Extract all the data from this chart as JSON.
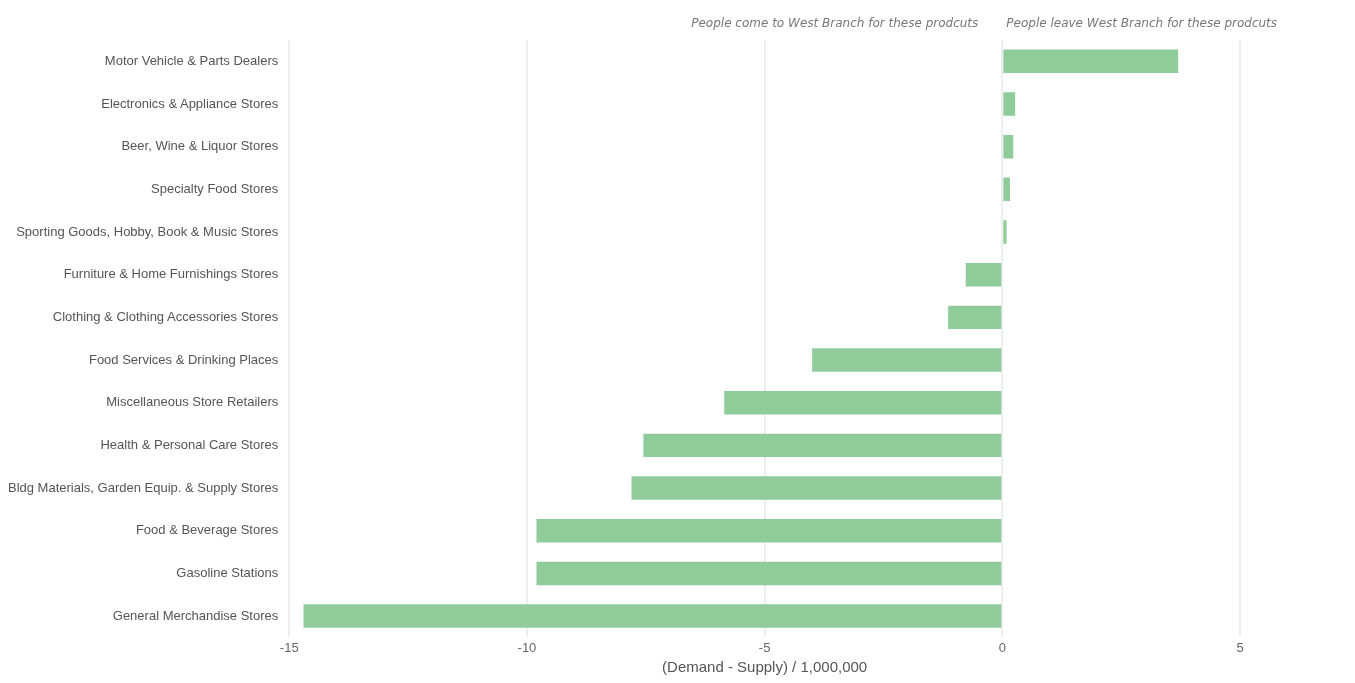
{
  "chart_data": {
    "type": "bar",
    "orientation": "horizontal",
    "xlabel": "(Demand - Supply) / 1,000,000",
    "annotations": [
      "People come to West Branch for these prodcuts",
      "People leave West Branch for these prodcuts"
    ],
    "categories": [
      "Motor Vehicle & Parts Dealers",
      "Electronics & Appliance Stores",
      "Beer, Wine & Liquor Stores",
      "Specialty Food Stores",
      "Sporting Goods, Hobby, Book & Music Stores",
      "Furniture & Home Furnishings Stores",
      "Clothing & Clothing Accessories Stores",
      "Food Services & Drinking Places",
      "Miscellaneous Store Retailers",
      "Health & Personal Care Stores",
      "Bldg Materials, Garden Equip. & Supply Stores",
      "Food & Beverage Stores",
      "Gasoline Stations",
      "General Merchandise Stores"
    ],
    "values": [
      3.7,
      0.27,
      0.23,
      0.16,
      0.09,
      -0.77,
      -1.14,
      -4.0,
      -5.85,
      -7.55,
      -7.8,
      -9.8,
      -9.8,
      -14.7
    ],
    "color": "#8fcc9a",
    "xlim": [
      -15,
      5
    ],
    "xticks": [
      -15,
      -10,
      -5,
      0,
      5
    ],
    "grid": "x",
    "legend": false
  }
}
